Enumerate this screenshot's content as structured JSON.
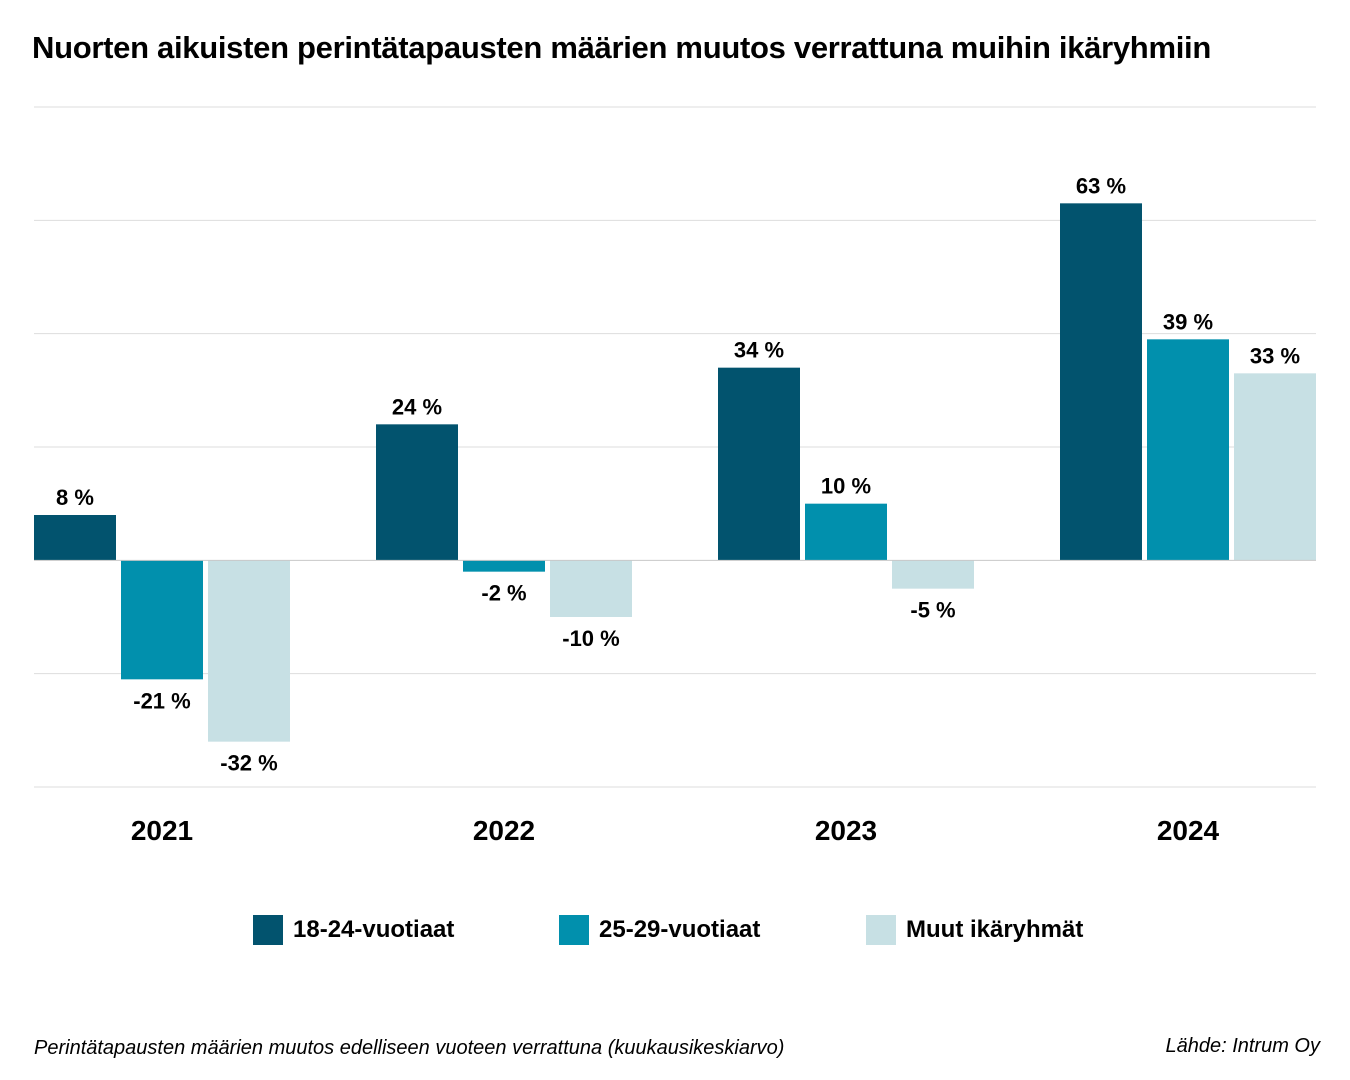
{
  "chart_data": {
    "type": "bar",
    "title": "Nuorten aikuisten perintätapausten määrien muutos verrattuna muihin ikäryhmiin",
    "categories": [
      "2021",
      "2022",
      "2023",
      "2024"
    ],
    "series": [
      {
        "name": "18-24-vuotiaat",
        "color": "#02536e",
        "values": [
          8,
          24,
          34,
          63
        ],
        "labels": [
          "8 %",
          "24 %",
          "34 %",
          "63 %"
        ]
      },
      {
        "name": "25-29-vuotiaat",
        "color": "#0190ad",
        "values": [
          -21,
          -2,
          10,
          39
        ],
        "labels": [
          "-21 %",
          "-2 %",
          "10 %",
          "39 %"
        ]
      },
      {
        "name": "Muut ikäryhmät",
        "color": "#c7e0e4",
        "values": [
          -32,
          -10,
          -5,
          33
        ],
        "labels": [
          "-32 %",
          "-10 %",
          "-5 %",
          "33 %"
        ]
      }
    ],
    "ylim": [
      -40,
      80
    ],
    "grid": true,
    "legend": "bottom",
    "xlabel": "",
    "ylabel": ""
  },
  "footnote": "Perintätapausten määrien muutos edelliseen vuoteen verrattuna (kuukausikeskiarvo)",
  "source": "Lähde: Intrum Oy",
  "colors": {
    "gridline": "#dddddd",
    "baseline": "#c8c8c8"
  }
}
